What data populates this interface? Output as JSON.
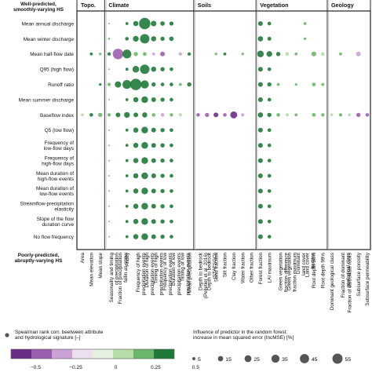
{
  "chart_data": {
    "type": "scatter",
    "title": "",
    "top_label": [
      "Well-predicted,",
      "smoothly-varying HS"
    ],
    "bottom_label": [
      "Poorly-predicted,",
      "abruptly-varying HS"
    ],
    "groups": [
      {
        "name": "Topo.",
        "start": 0,
        "end": 2
      },
      {
        "name": "Climate",
        "start": 3,
        "end": 12
      },
      {
        "name": "Soils",
        "start": 13,
        "end": 19
      },
      {
        "name": "Vegetation",
        "start": 20,
        "end": 27
      },
      {
        "name": "Geology",
        "start": 28,
        "end": 32
      }
    ],
    "rows": [
      "Mean annual discharge",
      "Mean winter discharge",
      "Mean half-flow date",
      "Q95 (high flow)",
      "Runoff ratio",
      "Mean summer discharge",
      "Baseflow index",
      "Q5 (low flow)",
      [
        "Frequency of",
        "low-flow days"
      ],
      [
        "Frequency of",
        "high-flow days"
      ],
      [
        "Mean duration of",
        "high-flow events"
      ],
      [
        "Mean duration of",
        "low-flow events"
      ],
      [
        "Streamflow-precipitation",
        "elasticity"
      ],
      [
        "Slope of the flow",
        "duration curve"
      ],
      "No flow frequency"
    ],
    "columns": [
      [
        "Area"
      ],
      [
        "Mean elevation"
      ],
      [
        "Mean slope"
      ],
      [
        "Seasonality and timing",
        "of precipitation"
      ],
      [
        "Fraction of precipitation",
        "fallin as snow"
      ],
      [
        "Aridity"
      ],
      [
        "Frequency of high",
        "precipitation events"
      ],
      [
        "Duration of high",
        "precipitation events"
      ],
      [
        "Timing of high",
        "precipitation events"
      ],
      [
        "Frequency of low",
        "precipitation events"
      ],
      [
        "Duration of low",
        "precipitation events"
      ],
      [
        "Timing of low",
        "precipitation events"
      ],
      [
        "Mean precipitation"
      ],
      [
        "Depth to bedrock",
        "(Pelletier et al. 2016)"
      ],
      [
        "Depth to bedrock",
        "(STATSGO)"
      ],
      [
        "Sand fraction"
      ],
      [
        "Silt fraction"
      ],
      [
        "Clay fraction"
      ],
      [
        "Water fraction"
      ],
      [
        "Other fraction"
      ],
      [
        "Forest fraction"
      ],
      [
        "LAI maximum"
      ],
      [
        "Green vegetation",
        "fraction difference"
      ],
      [
        "Green vegetation",
        "fraction maximum"
      ],
      [
        "Dominant",
        "land cover"
      ],
      [
        "Land cover",
        "fraction"
      ],
      [
        "Root depth 50%"
      ],
      [
        "Root depth 99%"
      ],
      [
        "Dominant geological class"
      ],
      [
        "Fraction of dominant",
        "geological class"
      ],
      [
        "Fraction of carbonate rocks"
      ],
      [
        "Subsurface porosity"
      ],
      [
        "Subsurface permeability"
      ]
    ],
    "points": [
      [
        0,
        3,
        0.3,
        1
      ],
      [
        0,
        5,
        0.5,
        4
      ],
      [
        0,
        6,
        0.75,
        12
      ],
      [
        0,
        7,
        0.8,
        58
      ],
      [
        0,
        8,
        0.5,
        14
      ],
      [
        0,
        9,
        0.45,
        9
      ],
      [
        0,
        10,
        0.5,
        8
      ],
      [
        0,
        20,
        0.6,
        10
      ],
      [
        0,
        21,
        0.5,
        6
      ],
      [
        0,
        25,
        0.3,
        4
      ],
      [
        1,
        3,
        0.3,
        2
      ],
      [
        1,
        5,
        0.5,
        6
      ],
      [
        1,
        6,
        0.75,
        15
      ],
      [
        1,
        7,
        0.8,
        40
      ],
      [
        1,
        8,
        0.5,
        12
      ],
      [
        1,
        9,
        0.45,
        8
      ],
      [
        1,
        10,
        0.5,
        9
      ],
      [
        1,
        20,
        0.6,
        12
      ],
      [
        1,
        21,
        0.5,
        7
      ],
      [
        1,
        25,
        0.3,
        3
      ],
      [
        2,
        1,
        0.5,
        4
      ],
      [
        2,
        2,
        0.3,
        3
      ],
      [
        2,
        3,
        0.4,
        5
      ],
      [
        2,
        4,
        -0.3,
        50
      ],
      [
        2,
        5,
        0.6,
        35
      ],
      [
        2,
        6,
        0.3,
        8
      ],
      [
        2,
        7,
        0.25,
        6
      ],
      [
        2,
        8,
        -0.2,
        4
      ],
      [
        2,
        9,
        -0.3,
        10
      ],
      [
        2,
        11,
        -0.2,
        5
      ],
      [
        2,
        12,
        0.4,
        5
      ],
      [
        2,
        15,
        0.3,
        3
      ],
      [
        2,
        16,
        0.4,
        4
      ],
      [
        2,
        18,
        0.3,
        3
      ],
      [
        2,
        20,
        0.5,
        20
      ],
      [
        2,
        21,
        0.6,
        15
      ],
      [
        2,
        22,
        0.4,
        8
      ],
      [
        2,
        23,
        0.2,
        6
      ],
      [
        2,
        24,
        0.3,
        4
      ],
      [
        2,
        26,
        0.3,
        10
      ],
      [
        2,
        27,
        0.2,
        6
      ],
      [
        2,
        29,
        0.3,
        4
      ],
      [
        2,
        31,
        -0.2,
        10
      ],
      [
        3,
        3,
        0.3,
        1
      ],
      [
        3,
        5,
        0.5,
        4
      ],
      [
        3,
        6,
        0.75,
        20
      ],
      [
        3,
        7,
        0.8,
        40
      ],
      [
        3,
        8,
        0.5,
        12
      ],
      [
        3,
        9,
        0.45,
        8
      ],
      [
        3,
        10,
        0.5,
        6
      ],
      [
        3,
        20,
        0.6,
        10
      ],
      [
        3,
        21,
        0.5,
        6
      ],
      [
        4,
        2,
        0.4,
        3
      ],
      [
        4,
        3,
        0.3,
        5
      ],
      [
        4,
        4,
        0.9,
        18
      ],
      [
        4,
        5,
        0.85,
        35
      ],
      [
        4,
        6,
        0.7,
        58
      ],
      [
        4,
        7,
        0.7,
        30
      ],
      [
        4,
        8,
        0.5,
        8
      ],
      [
        4,
        9,
        0.4,
        6
      ],
      [
        4,
        10,
        0.5,
        6
      ],
      [
        4,
        11,
        0.3,
        4
      ],
      [
        4,
        12,
        0.6,
        8
      ],
      [
        4,
        20,
        0.6,
        10
      ],
      [
        4,
        21,
        0.5,
        8
      ],
      [
        4,
        22,
        0.3,
        4
      ],
      [
        4,
        24,
        0.3,
        3
      ],
      [
        4,
        26,
        0.3,
        6
      ],
      [
        4,
        27,
        0.3,
        4
      ],
      [
        5,
        3,
        0.3,
        1
      ],
      [
        5,
        5,
        0.5,
        4
      ],
      [
        5,
        6,
        0.75,
        12
      ],
      [
        5,
        7,
        0.8,
        20
      ],
      [
        5,
        8,
        0.5,
        10
      ],
      [
        5,
        9,
        0.45,
        8
      ],
      [
        5,
        10,
        0.5,
        6
      ],
      [
        5,
        20,
        0.6,
        10
      ],
      [
        5,
        21,
        0.5,
        6
      ],
      [
        6,
        0,
        0.2,
        4
      ],
      [
        6,
        1,
        0.4,
        6
      ],
      [
        6,
        2,
        0.3,
        8
      ],
      [
        6,
        3,
        0.3,
        5
      ],
      [
        6,
        4,
        0.4,
        10
      ],
      [
        6,
        5,
        0.5,
        15
      ],
      [
        6,
        6,
        0.6,
        10
      ],
      [
        6,
        7,
        0.6,
        12
      ],
      [
        6,
        8,
        0.3,
        6
      ],
      [
        6,
        9,
        -0.2,
        6
      ],
      [
        6,
        10,
        0.3,
        5
      ],
      [
        6,
        11,
        0.2,
        5
      ],
      [
        6,
        13,
        -0.3,
        6
      ],
      [
        6,
        14,
        -0.3,
        8
      ],
      [
        6,
        15,
        -0.4,
        10
      ],
      [
        6,
        16,
        -0.3,
        6
      ],
      [
        6,
        17,
        -0.5,
        22
      ],
      [
        6,
        18,
        -0.2,
        5
      ],
      [
        6,
        20,
        0.6,
        12
      ],
      [
        6,
        21,
        0.5,
        8
      ],
      [
        6,
        22,
        0.3,
        6
      ],
      [
        6,
        23,
        0.2,
        5
      ],
      [
        6,
        24,
        0.3,
        4
      ],
      [
        6,
        26,
        0.3,
        6
      ],
      [
        6,
        27,
        0.3,
        5
      ],
      [
        6,
        28,
        0.2,
        4
      ],
      [
        6,
        29,
        0.3,
        5
      ],
      [
        6,
        30,
        0.2,
        4
      ],
      [
        6,
        31,
        -0.3,
        8
      ],
      [
        6,
        32,
        -0.3,
        6
      ],
      [
        7,
        3,
        0.3,
        1
      ],
      [
        7,
        5,
        0.5,
        4
      ],
      [
        7,
        6,
        0.75,
        12
      ],
      [
        7,
        7,
        0.8,
        20
      ],
      [
        7,
        8,
        0.5,
        10
      ],
      [
        7,
        9,
        0.45,
        8
      ],
      [
        7,
        10,
        0.5,
        6
      ],
      [
        7,
        20,
        0.6,
        10
      ],
      [
        7,
        21,
        0.5,
        6
      ],
      [
        8,
        3,
        0.3,
        1
      ],
      [
        8,
        5,
        0.5,
        4
      ],
      [
        8,
        6,
        0.75,
        12
      ],
      [
        8,
        7,
        0.8,
        20
      ],
      [
        8,
        8,
        0.5,
        10
      ],
      [
        8,
        9,
        0.45,
        8
      ],
      [
        8,
        10,
        0.5,
        6
      ],
      [
        8,
        20,
        0.6,
        10
      ],
      [
        8,
        21,
        0.5,
        6
      ],
      [
        9,
        3,
        0.3,
        1
      ],
      [
        9,
        5,
        0.5,
        4
      ],
      [
        9,
        6,
        0.75,
        12
      ],
      [
        9,
        7,
        0.8,
        20
      ],
      [
        9,
        8,
        0.5,
        10
      ],
      [
        9,
        9,
        0.45,
        8
      ],
      [
        9,
        10,
        0.5,
        6
      ],
      [
        9,
        20,
        0.6,
        10
      ],
      [
        9,
        21,
        0.5,
        6
      ],
      [
        10,
        3,
        0.3,
        1
      ],
      [
        10,
        5,
        0.5,
        4
      ],
      [
        10,
        6,
        0.75,
        12
      ],
      [
        10,
        7,
        0.8,
        20
      ],
      [
        10,
        8,
        0.5,
        10
      ],
      [
        10,
        9,
        0.45,
        8
      ],
      [
        10,
        10,
        0.5,
        6
      ],
      [
        10,
        20,
        0.6,
        10
      ],
      [
        10,
        21,
        0.5,
        6
      ],
      [
        11,
        3,
        0.3,
        1
      ],
      [
        11,
        5,
        0.5,
        4
      ],
      [
        11,
        6,
        0.75,
        12
      ],
      [
        11,
        7,
        0.8,
        20
      ],
      [
        11,
        8,
        0.5,
        10
      ],
      [
        11,
        9,
        0.45,
        8
      ],
      [
        11,
        10,
        0.5,
        6
      ],
      [
        11,
        20,
        0.6,
        10
      ],
      [
        11,
        21,
        0.5,
        6
      ],
      [
        12,
        3,
        0.3,
        1
      ],
      [
        12,
        5,
        0.5,
        4
      ],
      [
        12,
        6,
        0.75,
        12
      ],
      [
        12,
        7,
        0.8,
        20
      ],
      [
        12,
        8,
        0.5,
        10
      ],
      [
        12,
        9,
        0.45,
        8
      ],
      [
        12,
        10,
        0.5,
        6
      ],
      [
        12,
        20,
        0.6,
        10
      ],
      [
        12,
        21,
        0.5,
        6
      ],
      [
        13,
        3,
        0.3,
        1
      ],
      [
        13,
        5,
        0.5,
        4
      ],
      [
        13,
        6,
        0.75,
        12
      ],
      [
        13,
        7,
        0.8,
        20
      ],
      [
        13,
        8,
        0.5,
        10
      ],
      [
        13,
        9,
        0.45,
        8
      ],
      [
        13,
        10,
        0.5,
        6
      ],
      [
        13,
        20,
        0.6,
        10
      ],
      [
        13,
        21,
        0.5,
        6
      ],
      [
        14,
        3,
        0.3,
        1
      ],
      [
        14,
        5,
        0.5,
        4
      ],
      [
        14,
        6,
        0.75,
        12
      ],
      [
        14,
        7,
        0.8,
        20
      ],
      [
        14,
        8,
        0.5,
        10
      ],
      [
        14,
        9,
        0.45,
        8
      ],
      [
        14,
        10,
        0.5,
        6
      ],
      [
        14,
        20,
        0.6,
        10
      ],
      [
        14,
        21,
        0.5,
        6
      ]
    ],
    "colorbar": {
      "label": [
        "Spearman rank corr. beetween attribute",
        "and hydrological signature [–]"
      ],
      "colors": [
        "#6b2c87",
        "#9c5fb0",
        "#c9a3d4",
        "#ece0f0",
        "#e6f1df",
        "#b6dca8",
        "#6bb66a",
        "#1f7a3a"
      ],
      "ticks": [
        "−0.5",
        "−0.25",
        "0",
        "0.25",
        "0.5"
      ]
    },
    "size_legend": {
      "label": [
        "Influence of predictor in the random forest:",
        "increase in mean squared error (IncMSE) [%]"
      ],
      "values": [
        5,
        15,
        25,
        35,
        45,
        55
      ]
    }
  }
}
